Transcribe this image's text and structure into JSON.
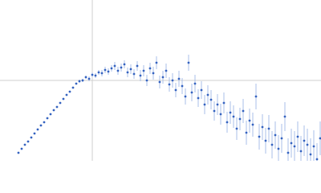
{
  "chart_data": {
    "type": "scatter",
    "xlim": [
      0,
      400
    ],
    "ylim": [
      0,
      200
    ],
    "color": "#3563c0",
    "error_color": "#a9bfea",
    "x": [
      23,
      27,
      31,
      35,
      39,
      43,
      47,
      51,
      55,
      59,
      63,
      67,
      71,
      75,
      79,
      83,
      87,
      91,
      95,
      99,
      103,
      107,
      111,
      115,
      119,
      123,
      127,
      131,
      135,
      139,
      143,
      147,
      151,
      155,
      159,
      163,
      167,
      171,
      175,
      179,
      183,
      187,
      191,
      195,
      199,
      203,
      207,
      211,
      215,
      219,
      223,
      227,
      231,
      235,
      239,
      243,
      247,
      251,
      255,
      259,
      263,
      267,
      271,
      275,
      279,
      283,
      287,
      291,
      295,
      299,
      303,
      307,
      311,
      315,
      319,
      323,
      327,
      331,
      335,
      339,
      343,
      347,
      351,
      355,
      359,
      363,
      367,
      371,
      375,
      379,
      383,
      387,
      391,
      395,
      399
    ],
    "values": [
      10,
      15,
      20,
      24,
      29,
      34,
      39,
      44,
      48,
      53,
      58,
      63,
      67,
      72,
      77,
      82,
      86,
      91,
      96,
      99,
      100,
      104,
      102,
      107,
      106,
      110,
      109,
      113,
      111,
      115,
      118,
      112,
      116,
      120,
      110,
      114,
      108,
      118,
      106,
      112,
      100,
      115,
      109,
      122,
      98,
      104,
      112,
      95,
      100,
      88,
      102,
      93,
      80,
      122,
      85,
      96,
      78,
      88,
      70,
      82,
      76,
      62,
      70,
      58,
      72,
      48,
      60,
      55,
      40,
      52,
      62,
      35,
      50,
      45,
      80,
      30,
      42,
      25,
      40,
      20,
      32,
      15,
      28,
      55,
      10,
      22,
      18,
      30,
      12,
      25,
      20,
      8,
      18,
      2,
      28
    ],
    "errors": [
      1,
      1,
      1,
      1,
      1,
      1,
      1,
      1,
      1,
      1,
      1,
      1,
      1,
      1,
      1,
      1,
      1,
      1,
      1,
      2,
      2,
      2,
      3,
      3,
      3,
      3,
      4,
      4,
      4,
      4,
      5,
      5,
      5,
      5,
      6,
      6,
      6,
      6,
      7,
      7,
      7,
      7,
      8,
      8,
      8,
      8,
      9,
      9,
      9,
      9,
      10,
      10,
      10,
      10,
      11,
      11,
      11,
      11,
      12,
      12,
      12,
      12,
      13,
      13,
      13,
      13,
      14,
      14,
      14,
      14,
      15,
      15,
      15,
      15,
      16,
      16,
      16,
      16,
      17,
      17,
      17,
      17,
      18,
      18,
      18,
      18,
      19,
      19,
      19,
      19,
      20,
      20,
      20,
      20,
      21
    ]
  }
}
